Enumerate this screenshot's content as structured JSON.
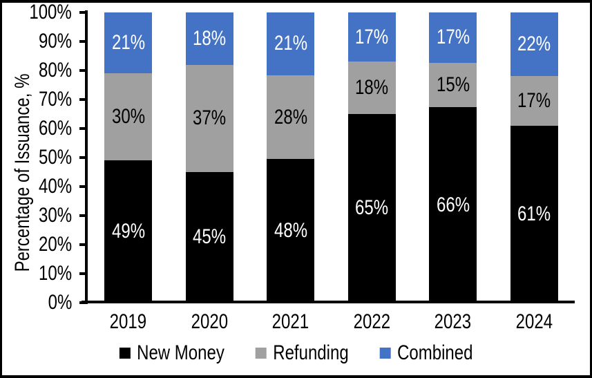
{
  "chart_data": {
    "type": "bar",
    "stacked": true,
    "title": "",
    "ylabel": "Percentage of Issuance, %",
    "xlabel": "",
    "categories": [
      "2019",
      "2020",
      "2021",
      "2022",
      "2023",
      "2024"
    ],
    "series": [
      {
        "name": "New Money",
        "color": "#000000",
        "label_color": "#ffffff",
        "values": [
          49,
          45,
          48,
          65,
          66,
          61
        ]
      },
      {
        "name": "Refunding",
        "color": "#a0a0a0",
        "label_color": "#000000",
        "values": [
          30,
          37,
          28,
          18,
          15,
          17
        ]
      },
      {
        "name": "Combined",
        "color": "#4472c4",
        "label_color": "#ffffff",
        "values": [
          21,
          18,
          21,
          17,
          17,
          22
        ]
      }
    ],
    "value_suffix": "%",
    "ylim": [
      0,
      100
    ],
    "yticks": [
      0,
      10,
      20,
      30,
      40,
      50,
      60,
      70,
      80,
      90,
      100
    ],
    "ytick_suffix": "%",
    "grid": false,
    "legend_position": "bottom",
    "colors": {
      "axis": "#000000",
      "background": "#ffffff",
      "frame": "#000000"
    }
  }
}
